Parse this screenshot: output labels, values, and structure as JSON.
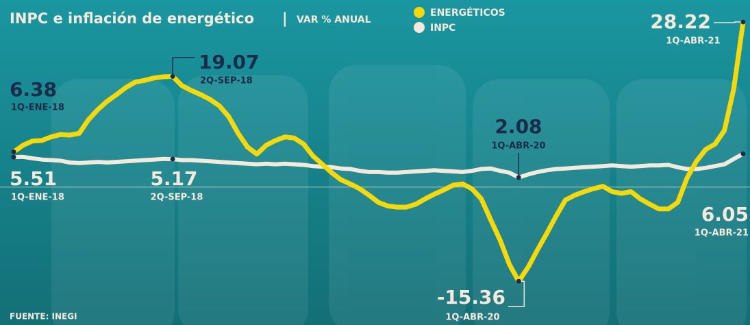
{
  "chart_data": {
    "type": "line",
    "title": "INPC e inflación de energético",
    "subtitle": "VAR % ANUAL",
    "source": "FUENTE: INEGI",
    "categories": [
      "1Q-ENE-18",
      null,
      null,
      null,
      null,
      null,
      null,
      null,
      null,
      null,
      null,
      null,
      null,
      null,
      null,
      null,
      null,
      "2Q-SEP-18",
      null,
      null,
      null,
      null,
      null,
      null,
      null,
      null,
      null,
      null,
      null,
      null,
      null,
      null,
      null,
      null,
      null,
      null,
      null,
      null,
      null,
      null,
      null,
      null,
      null,
      null,
      null,
      null,
      null,
      null,
      null,
      null,
      null,
      null,
      null,
      null,
      "1Q-ABR-20",
      null,
      null,
      null,
      null,
      null,
      null,
      null,
      null,
      null,
      null,
      null,
      null,
      null,
      null,
      null,
      null,
      null,
      null,
      null,
      null,
      null,
      null,
      null,
      "1Q-ABR-21"
    ],
    "series": [
      {
        "name": "ENERGÉTICOS",
        "color": "#f5d90a",
        "values": [
          6.38,
          7.5,
          8.2,
          8.3,
          8.9,
          9.3,
          9.2,
          9.5,
          11.8,
          13.5,
          14.9,
          16.0,
          17.2,
          18.1,
          18.4,
          18.8,
          19.0,
          19.07,
          17.5,
          16.7,
          16.0,
          15.2,
          14.1,
          12.3,
          9.5,
          7.2,
          6.0,
          7.5,
          8.3,
          8.9,
          8.7,
          7.7,
          5.7,
          4.3,
          2.9,
          1.7,
          1.0,
          0.2,
          -0.9,
          -2.1,
          -2.7,
          -2.9,
          -2.9,
          -2.4,
          -1.5,
          -0.7,
          0.0,
          0.8,
          1.0,
          0.2,
          -1.5,
          -5.0,
          -8.4,
          -12.5,
          -15.36,
          -13.0,
          -10.1,
          -7.3,
          -4.4,
          -1.7,
          -0.9,
          -0.3,
          0.2,
          0.6,
          -0.3,
          -0.6,
          -0.3,
          -1.5,
          -2.4,
          -3.2,
          -3.2,
          -2.1,
          2.0,
          4.8,
          6.8,
          7.7,
          10.0,
          17.0,
          28.22
        ]
      },
      {
        "name": "INPC",
        "color": "#f3e9dc",
        "values": [
          5.51,
          5.55,
          5.3,
          5.1,
          5.0,
          4.9,
          4.6,
          4.5,
          4.6,
          4.7,
          4.6,
          4.7,
          4.8,
          4.9,
          5.0,
          5.1,
          5.2,
          5.17,
          5.0,
          5.0,
          4.9,
          4.8,
          4.7,
          4.6,
          4.5,
          4.4,
          4.3,
          4.4,
          4.3,
          4.4,
          4.3,
          4.2,
          4.0,
          3.9,
          3.8,
          3.6,
          3.5,
          3.2,
          3.0,
          3.0,
          2.9,
          2.9,
          3.0,
          3.1,
          3.2,
          3.3,
          3.2,
          3.1,
          3.0,
          3.2,
          3.5,
          3.6,
          3.2,
          2.9,
          2.08,
          2.6,
          3.0,
          3.3,
          3.5,
          3.6,
          3.7,
          3.8,
          3.9,
          4.0,
          4.1,
          4.0,
          3.9,
          4.0,
          4.1,
          4.1,
          4.2,
          3.8,
          3.5,
          3.5,
          3.7,
          4.0,
          4.3,
          5.2,
          6.05
        ]
      }
    ],
    "ylim": [
      -22.7,
      31.9
    ],
    "grid": false
  }
}
